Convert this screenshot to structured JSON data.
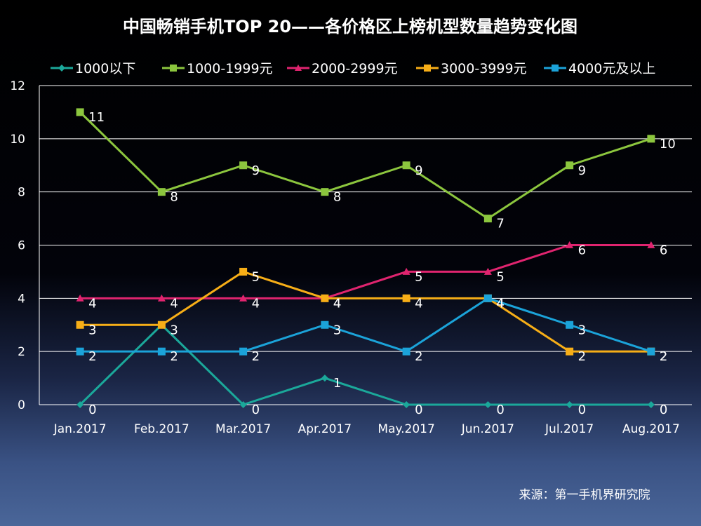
{
  "chart_data": {
    "type": "line",
    "title": "中国畅销手机TOP 20——各价格区上榜机型数量趋势变化图",
    "categories": [
      "Jan.2017",
      "Feb.2017",
      "Mar.2017",
      "Apr.2017",
      "May.2017",
      "Jun.2017",
      "Jul.2017",
      "Aug.2017"
    ],
    "y_ticks": [
      "0",
      "2",
      "4",
      "6",
      "8",
      "10",
      "12"
    ],
    "ylim": [
      0,
      12
    ],
    "grid": true,
    "legend_position": "top",
    "series": [
      {
        "name": "1000以下",
        "color": "#1ba89a",
        "marker": "diamond",
        "values": [
          0,
          3,
          0,
          1,
          0,
          0,
          0,
          0
        ],
        "labels": [
          "0",
          "",
          "0",
          "1",
          "0",
          "0",
          "0",
          "0"
        ]
      },
      {
        "name": "1000-1999元",
        "color": "#8cc63e",
        "marker": "square",
        "values": [
          11,
          8,
          9,
          8,
          9,
          7,
          9,
          10
        ],
        "labels": [
          "11",
          "8",
          "9",
          "8",
          "9",
          "7",
          "9",
          "10"
        ]
      },
      {
        "name": "2000-2999元",
        "color": "#e0246f",
        "marker": "triangle",
        "values": [
          4,
          4,
          4,
          4,
          5,
          5,
          6,
          6
        ],
        "labels": [
          "4",
          "4",
          "4",
          "4",
          "5",
          "5",
          "6",
          "6"
        ]
      },
      {
        "name": "3000-3999元",
        "color": "#f7ae17",
        "marker": "square",
        "values": [
          3,
          3,
          5,
          4,
          4,
          4,
          2,
          2
        ],
        "labels": [
          "3",
          "3",
          "5",
          "4",
          "4",
          "4",
          "2",
          "2"
        ]
      },
      {
        "name": "4000元及以上",
        "color": "#1ba3d9",
        "marker": "square",
        "values": [
          2,
          2,
          2,
          3,
          2,
          4,
          3,
          2
        ],
        "labels": [
          "2",
          "2",
          "2",
          "3",
          "2",
          "4",
          "3",
          "2"
        ]
      }
    ],
    "source": "来源：第一手机界研究院"
  }
}
